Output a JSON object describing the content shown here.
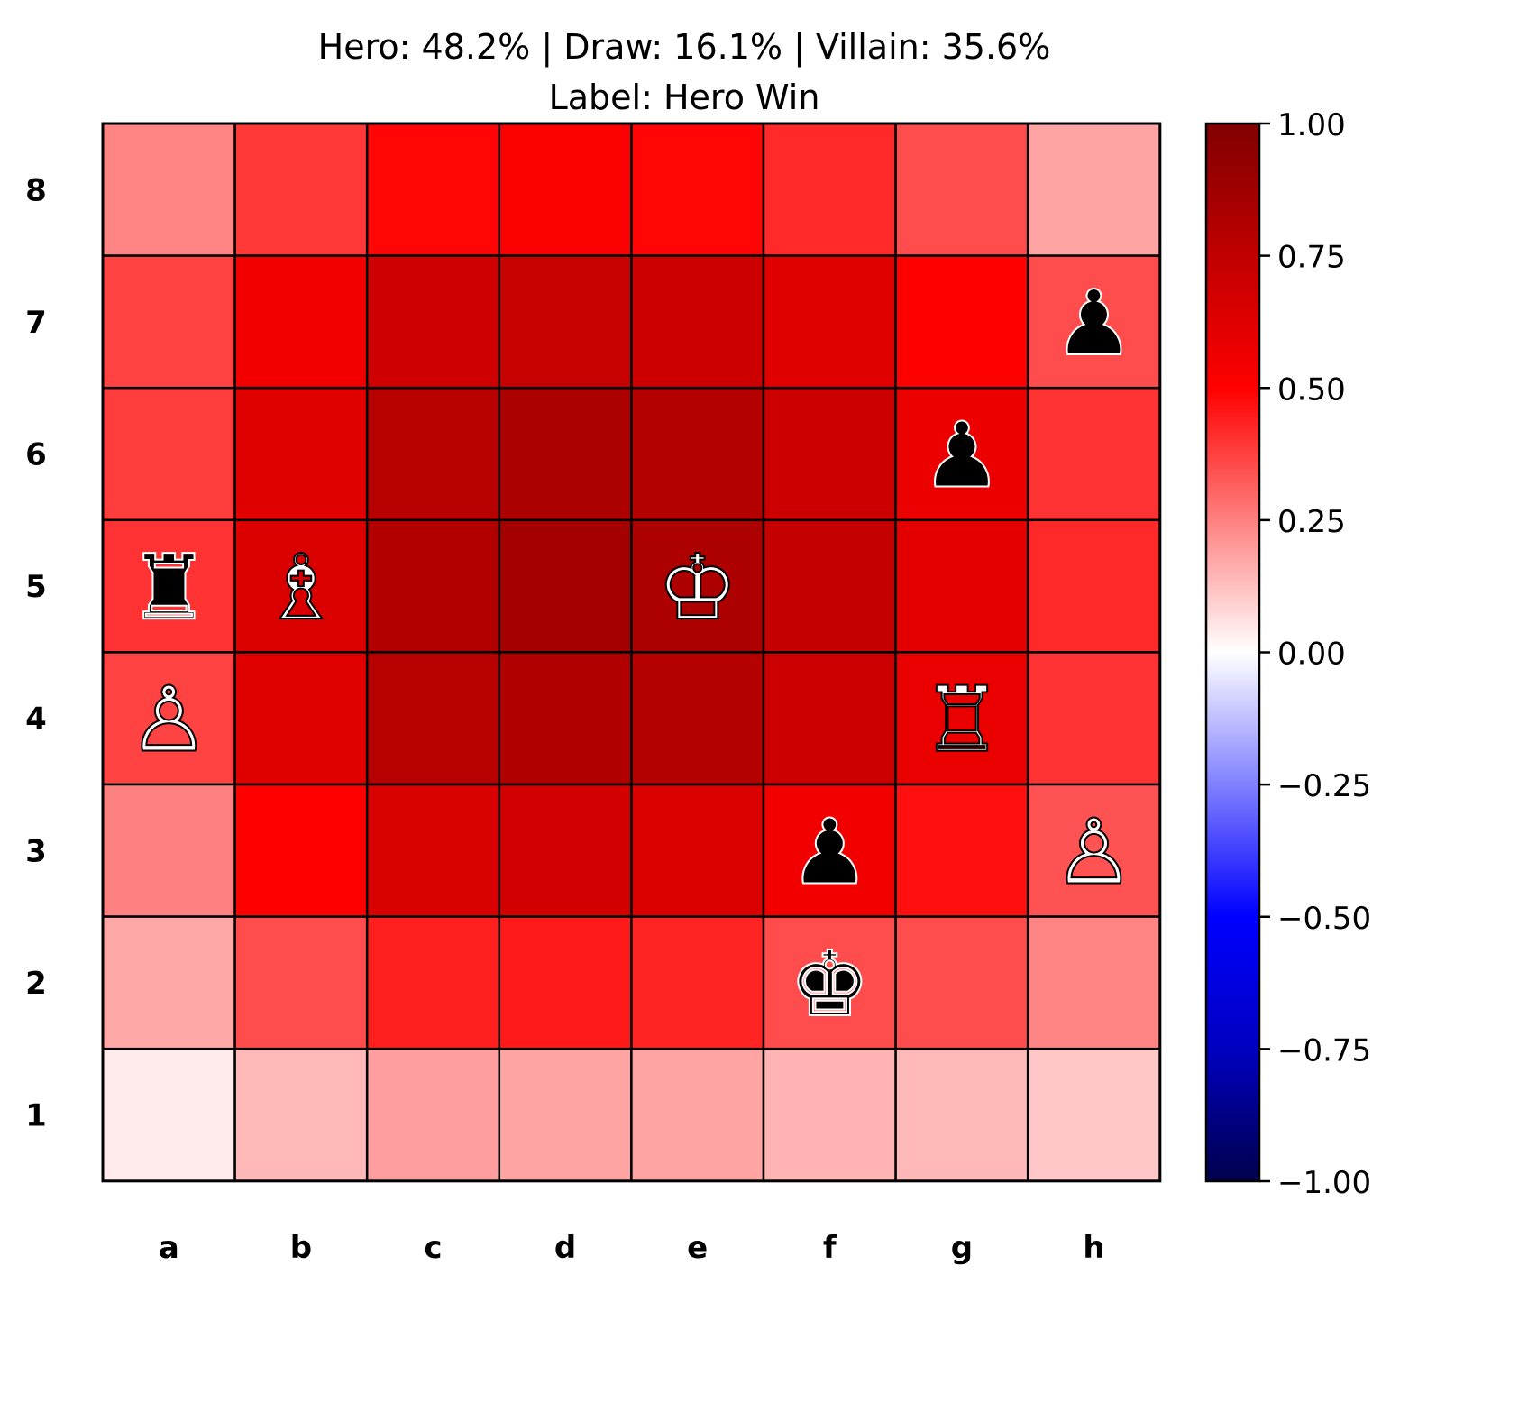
{
  "chart_data": {
    "type": "heatmap",
    "title_line1": "Hero: 48.2% | Draw: 16.1% | Villain: 35.6%",
    "title_line2": "Label: Hero Win",
    "files": [
      "a",
      "b",
      "c",
      "d",
      "e",
      "f",
      "g",
      "h"
    ],
    "ranks": [
      "8",
      "7",
      "6",
      "5",
      "4",
      "3",
      "2",
      "1"
    ],
    "values": [
      [
        0.24,
        0.39,
        0.49,
        0.52,
        0.49,
        0.42,
        0.35,
        0.18
      ],
      [
        0.37,
        0.55,
        0.69,
        0.72,
        0.7,
        0.62,
        0.5,
        0.35
      ],
      [
        0.38,
        0.62,
        0.78,
        0.82,
        0.79,
        0.7,
        0.57,
        0.4
      ],
      [
        0.4,
        0.64,
        0.8,
        0.85,
        0.82,
        0.73,
        0.6,
        0.42
      ],
      [
        0.37,
        0.62,
        0.78,
        0.81,
        0.79,
        0.7,
        0.58,
        0.4
      ],
      [
        0.25,
        0.5,
        0.65,
        0.67,
        0.64,
        0.55,
        0.47,
        0.34
      ],
      [
        0.17,
        0.35,
        0.44,
        0.45,
        0.43,
        0.35,
        0.35,
        0.24
      ],
      [
        0.04,
        0.14,
        0.19,
        0.18,
        0.18,
        0.15,
        0.14,
        0.11
      ]
    ],
    "pieces": [
      {
        "square": "h7",
        "glyph": "♟",
        "side": "black",
        "name": "black-pawn-h7"
      },
      {
        "square": "g6",
        "glyph": "♟",
        "side": "black",
        "name": "black-pawn-g6"
      },
      {
        "square": "a5",
        "glyph": "♜",
        "side": "black",
        "name": "black-rook-a5"
      },
      {
        "square": "b5",
        "glyph": "♗",
        "side": "white",
        "name": "white-bishop-b5"
      },
      {
        "square": "e5",
        "glyph": "♔",
        "side": "white",
        "name": "white-king-e5"
      },
      {
        "square": "a4",
        "glyph": "♙",
        "side": "white",
        "name": "white-pawn-a4"
      },
      {
        "square": "g4",
        "glyph": "♖",
        "side": "white",
        "name": "white-rook-g4"
      },
      {
        "square": "f3",
        "glyph": "♟",
        "side": "black",
        "name": "black-pawn-f3"
      },
      {
        "square": "h3",
        "glyph": "♙",
        "side": "white",
        "name": "white-pawn-h3"
      },
      {
        "square": "f2",
        "glyph": "♚",
        "side": "black",
        "name": "black-king-f2"
      }
    ],
    "colormap": "seismic",
    "colorbar": {
      "vmin": -1.0,
      "vmax": 1.0,
      "ticks": [
        1.0,
        0.75,
        0.5,
        0.25,
        0.0,
        -0.25,
        -0.5,
        -0.75,
        -1.0
      ],
      "tick_labels": [
        "1.00",
        "0.75",
        "0.50",
        "0.25",
        "0.00",
        "−0.25",
        "−0.50",
        "−0.75",
        "−1.00"
      ]
    }
  }
}
